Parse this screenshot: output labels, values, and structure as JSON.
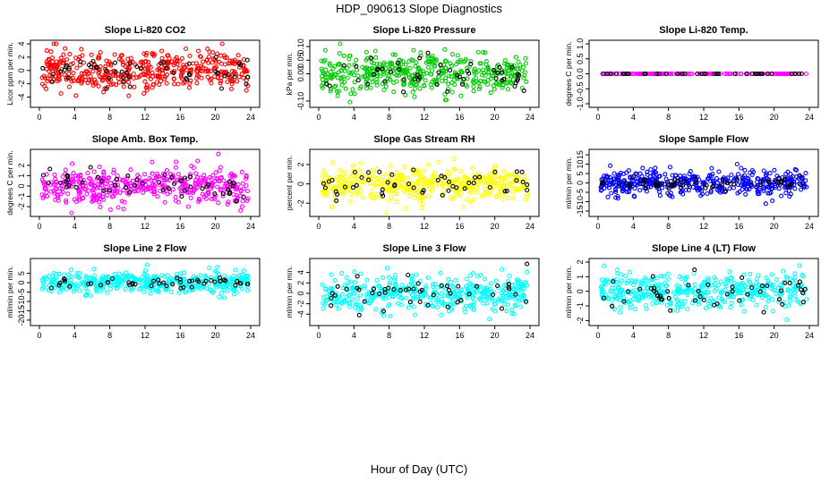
{
  "figure": {
    "title": "HDP_090613  Slope Diagnostics",
    "xlabel": "Hour of Day (UTC)"
  },
  "chart_data": [
    {
      "type": "scatter",
      "title": "Slope Li-820 CO2",
      "ylabel": "Licor ppm per min.",
      "xlim": [
        0,
        24
      ],
      "ylim": [
        -5,
        4
      ],
      "xticks": [
        "0",
        "4",
        "8",
        "12",
        "16",
        "20",
        "24"
      ],
      "yticks": [
        "-4",
        "-2",
        "0",
        "2",
        "4"
      ],
      "ytick_values": [
        -4,
        -2,
        0,
        2,
        4
      ],
      "series": [
        {
          "color": "#ff0000",
          "spread": 1.5,
          "count": 430
        },
        {
          "color": "#000000",
          "spread": 1.2,
          "count": 50
        }
      ],
      "seed": 11
    },
    {
      "type": "scatter",
      "title": "Slope Li-820 Pressure",
      "ylabel": "kPa per min.",
      "xlim": [
        0,
        24
      ],
      "ylim": [
        -0.11,
        0.11
      ],
      "xticks": [
        "0",
        "4",
        "8",
        "12",
        "16",
        "20",
        "24"
      ],
      "yticks": [
        "-0.10",
        "0.00",
        "0.05",
        "0.10"
      ],
      "ytick_values": [
        -0.1,
        0,
        0.05,
        0.1
      ],
      "series": [
        {
          "color": "#00cc00",
          "spread": 0.035,
          "count": 430
        },
        {
          "color": "#000000",
          "spread": 0.03,
          "count": 50
        }
      ],
      "seed": 22
    },
    {
      "type": "scatter",
      "title": "Slope Li-820 Temp.",
      "ylabel": "degrees C per min.",
      "xlim": [
        0,
        24
      ],
      "ylim": [
        -1,
        1
      ],
      "xticks": [
        "0",
        "4",
        "8",
        "12",
        "16",
        "20",
        "24"
      ],
      "yticks": [
        "-1.0",
        "-0.5",
        "0.0",
        "0.5",
        "1.0"
      ],
      "ytick_values": [
        -1,
        -0.5,
        0,
        0.5,
        1
      ],
      "series": [
        {
          "color": "#ff00ff",
          "spread": 0,
          "count": 160
        },
        {
          "color": "#000000",
          "spread": 0,
          "count": 40
        }
      ],
      "seed": 33
    },
    {
      "type": "scatter",
      "title": "Slope Amb. Box Temp.",
      "ylabel": "degrees C per min.",
      "xlim": [
        0,
        24
      ],
      "ylim": [
        -2.6,
        3.2
      ],
      "xticks": [
        "0",
        "4",
        "8",
        "12",
        "16",
        "20",
        "24"
      ],
      "yticks": [
        "-2",
        "-1",
        "0",
        "1",
        "2"
      ],
      "ytick_values": [
        -2,
        -1,
        0,
        1,
        2
      ],
      "series": [
        {
          "color": "#ff00ff",
          "spread": 0.9,
          "count": 430
        },
        {
          "color": "#000000",
          "spread": 0.7,
          "count": 50
        }
      ],
      "seed": 44
    },
    {
      "type": "scatter",
      "title": "Slope Gas Stream RH",
      "ylabel": "percent per min.",
      "xlim": [
        0,
        24
      ],
      "ylim": [
        -3,
        3.2
      ],
      "xticks": [
        "0",
        "4",
        "8",
        "12",
        "16",
        "20",
        "24"
      ],
      "yticks": [
        "-2",
        "0",
        "2"
      ],
      "ytick_values": [
        -2,
        0,
        2
      ],
      "series": [
        {
          "color": "#ffff00",
          "spread": 0.9,
          "count": 430
        },
        {
          "color": "#000000",
          "spread": 0.8,
          "count": 50
        }
      ],
      "seed": 55
    },
    {
      "type": "scatter",
      "title": "Slope Sample Flow",
      "ylabel": "ml/min per min.",
      "xlim": [
        0,
        24
      ],
      "ylim": [
        -16,
        16
      ],
      "xticks": [
        "0",
        "4",
        "8",
        "12",
        "16",
        "20",
        "24"
      ],
      "yticks": [
        "-15",
        "-10",
        "-5",
        "0",
        "5",
        "10",
        "15"
      ],
      "ytick_values": [
        -15,
        -10,
        -5,
        0,
        5,
        10,
        15
      ],
      "series": [
        {
          "color": "#0000ff",
          "spread": 3.5,
          "count": 430
        },
        {
          "color": "#000000",
          "spread": 1.5,
          "count": 60
        }
      ],
      "seed": 66
    },
    {
      "type": "scatter",
      "title": "Slope Line 2 Flow",
      "ylabel": "ml/min per min.",
      "xlim": [
        0,
        24
      ],
      "ylim": [
        -21,
        11
      ],
      "xticks": [
        "0",
        "4",
        "8",
        "12",
        "16",
        "20",
        "24"
      ],
      "yticks": [
        "-20",
        "-15",
        "-10",
        "-5",
        "0",
        "5"
      ],
      "ytick_values": [
        -20,
        -15,
        -10,
        -5,
        0,
        5
      ],
      "series": [
        {
          "color": "#00ffff",
          "spread": 3,
          "count": 430
        },
        {
          "color": "#000000",
          "spread": 1.5,
          "count": 50
        }
      ],
      "seed": 77
    },
    {
      "type": "scatter",
      "title": "Slope Line 3 Flow",
      "ylabel": "ml/min per min.",
      "xlim": [
        0,
        24
      ],
      "ylim": [
        -5.5,
        6
      ],
      "xticks": [
        "0",
        "4",
        "8",
        "12",
        "16",
        "20",
        "24"
      ],
      "yticks": [
        "-4",
        "-2",
        "0",
        "2",
        "4"
      ],
      "ytick_values": [
        -4,
        -2,
        0,
        2,
        4
      ],
      "series": [
        {
          "color": "#00ffff",
          "spread": 1.7,
          "count": 430
        },
        {
          "color": "#000000",
          "spread": 1.6,
          "count": 50
        }
      ],
      "seed": 88
    },
    {
      "type": "scatter",
      "title": "Slope Line 4 (LT) Flow",
      "ylabel": "ml/min per min.",
      "xlim": [
        0,
        24
      ],
      "ylim": [
        -2.1,
        2
      ],
      "xticks": [
        "0",
        "4",
        "8",
        "12",
        "16",
        "20",
        "24"
      ],
      "yticks": [
        "-2",
        "-1",
        "0",
        "1",
        "2"
      ],
      "ytick_values": [
        -2,
        -1,
        0,
        1,
        2
      ],
      "series": [
        {
          "color": "#00ffff",
          "spread": 0.6,
          "count": 430
        },
        {
          "color": "#000000",
          "spread": 0.55,
          "count": 50
        }
      ],
      "seed": 99
    }
  ]
}
